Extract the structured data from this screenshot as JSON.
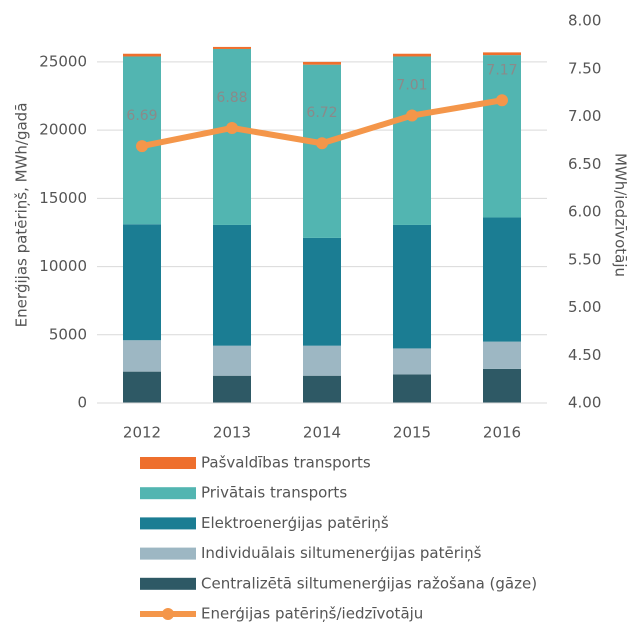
{
  "chart_data": {
    "type": "bar",
    "stacked": true,
    "y_label": "Enerģijas patēriņš, MWh/gadā",
    "y2_label": "MWh/iedzīvotāju",
    "categories": [
      "2012",
      "2013",
      "2014",
      "2015",
      "2016"
    ],
    "series": [
      {
        "name": "Pašvaldības transports",
        "color": "#ee6f2d",
        "values": [
          200,
          150,
          200,
          200,
          200
        ]
      },
      {
        "name": "Privātais transports",
        "color": "#52b5b1",
        "values": [
          12300,
          12900,
          12700,
          12350,
          11900
        ]
      },
      {
        "name": "Elektroenerģijas patēriņš",
        "color": "#1b7d93",
        "values": [
          8500,
          8850,
          7900,
          9050,
          9100
        ]
      },
      {
        "name": "Individuālais siltumenerģijas patēriņš",
        "color": "#9db7c3",
        "values": [
          2300,
          2200,
          2200,
          1900,
          2000
        ]
      },
      {
        "name": "Centralizētā siltumenerģijas ražošana (gāze)",
        "color": "#2e5965",
        "values": [
          2300,
          2000,
          2000,
          2100,
          2500
        ]
      },
      {
        "name": "Enerģijas patēriņš/iedzīvotāju",
        "color": "#f4964a",
        "type": "line",
        "axis": "y2",
        "values": [
          6.69,
          6.88,
          6.72,
          7.01,
          7.17
        ]
      }
    ],
    "ylim": [
      0,
      28000
    ],
    "yticks": [
      0,
      5000,
      10000,
      15000,
      20000,
      25000
    ],
    "y2lim": [
      4,
      8
    ],
    "y2ticks": [
      {
        "value": 4,
        "label": "4.00"
      },
      {
        "value": 4.5,
        "label": "4.50"
      },
      {
        "value": 5,
        "label": "5.00"
      },
      {
        "value": 5.5,
        "label": "5.50"
      },
      {
        "value": 6,
        "label": "6.00"
      },
      {
        "value": 6.5,
        "label": "6.50"
      },
      {
        "value": 7,
        "label": "7.00"
      },
      {
        "value": 7.5,
        "label": "7.50"
      },
      {
        "value": 8,
        "label": "8.00"
      }
    ],
    "grid": true,
    "legend": "bottom"
  }
}
